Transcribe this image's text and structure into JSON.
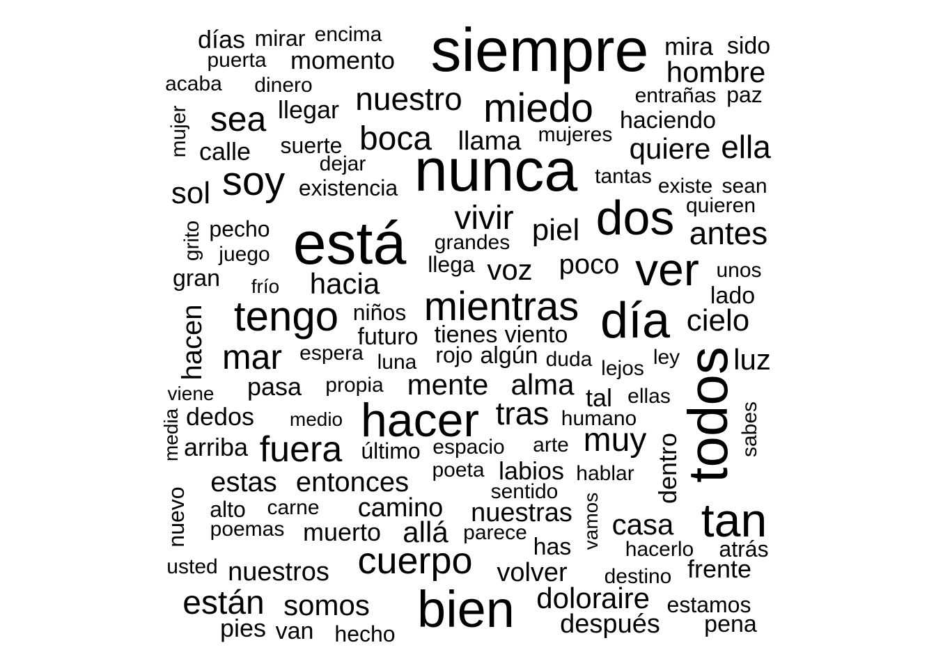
{
  "color": "#000000",
  "words": [
    "siempre",
    "nunca",
    "está",
    "todos",
    "bien",
    "hacer",
    "día",
    "dos",
    "tan",
    "ver",
    "mientras",
    "tengo",
    "miedo",
    "soy",
    "cuerpo",
    "nuestro",
    "sea",
    "boca",
    "mar",
    "fuera",
    "hombre",
    "vivir",
    "muy",
    "estas",
    "entonces",
    "mente",
    "alma",
    "están",
    "antes",
    "quiere",
    "ella",
    "tras",
    "piel",
    "poco",
    "cielo",
    "dolor",
    "aire",
    "después",
    "somos",
    "hacia",
    "camino",
    "casa",
    "nuestras",
    "hacen",
    "allá",
    "voz",
    "sol",
    "luz",
    "llama",
    "volver",
    "momento",
    "nuestros",
    "días",
    "mira",
    "sido",
    "calle",
    "llegar",
    "muerto",
    "pasa",
    "dedos",
    "arriba",
    "frente",
    "dentro",
    "labios",
    "haciendo",
    "existencia",
    "suerte",
    "hecho",
    "mirar",
    "encima",
    "puerta",
    "acaba",
    "dinero",
    "entrañas",
    "paz",
    "mujer",
    "mujeres",
    "dejar",
    "tantas",
    "existe",
    "sean",
    "quieren",
    "pecho",
    "grito",
    "grandes",
    "juego",
    "llega",
    "gran",
    "frío",
    "unos",
    "lado",
    "niños",
    "tienes",
    "viento",
    "futuro",
    "espera",
    "rojo",
    "algún",
    "duda",
    "luna",
    "lejos",
    "ley",
    "propia",
    "viene",
    "tal",
    "ellas",
    "medio",
    "humano",
    "media",
    "sabes",
    "último",
    "espacio",
    "arte",
    "poeta",
    "hablar",
    "sentido",
    "alto",
    "carne",
    "nuevo",
    "vamos",
    "poemas",
    "parece",
    "has",
    "hacerlo",
    "atrás",
    "usted",
    "destino",
    "estamos",
    "pies",
    "van",
    "pena"
  ]
}
